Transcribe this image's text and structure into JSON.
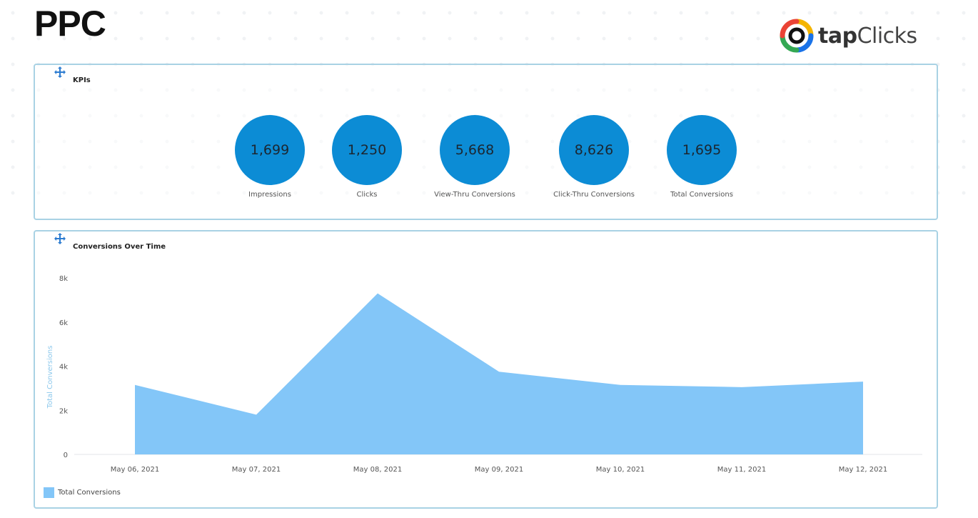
{
  "page": {
    "title": "PPC"
  },
  "logo": {
    "bold": "tap",
    "light": "Clicks"
  },
  "kpi_panel": {
    "label": "KPIs",
    "items": [
      {
        "value": "1,699",
        "label": "Impressions"
      },
      {
        "value": "1,250",
        "label": "Clicks"
      },
      {
        "value": "5,668",
        "label": "View-Thru Conversions"
      },
      {
        "value": "8,626",
        "label": "Click-Thru Conversions"
      },
      {
        "value": "1,695",
        "label": "Total Conversions"
      }
    ]
  },
  "chart_panel": {
    "label": "Conversions Over Time",
    "legend": "Total Conversions"
  },
  "colors": {
    "kpi_circle": "#0c8cd5",
    "area_fill": "#83c6f8",
    "panel_border": "#a9d2e4"
  },
  "chart_data": {
    "type": "area",
    "title": "Conversions Over Time",
    "xlabel": "",
    "ylabel": "Total Conversions",
    "x": [
      "May 06, 2021",
      "May 07, 2021",
      "May 08, 2021",
      "May 09, 2021",
      "May 10, 2021",
      "May 11, 2021",
      "May 12, 2021"
    ],
    "series": [
      {
        "name": "Total Conversions",
        "values": [
          3150,
          1800,
          7300,
          3750,
          3150,
          3050,
          3300
        ]
      }
    ],
    "ylim": [
      0,
      8000
    ],
    "yticks": [
      0,
      2000,
      4000,
      6000,
      8000
    ],
    "ytick_labels": [
      "0",
      "2k",
      "4k",
      "6k",
      "8k"
    ],
    "grid": false,
    "legend_position": "bottom-left"
  }
}
